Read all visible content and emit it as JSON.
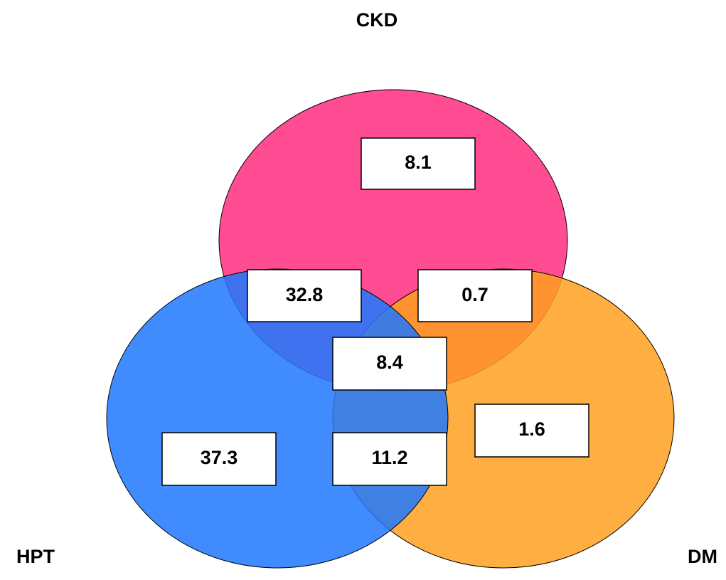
{
  "sets": [
    {
      "label": "CKD"
    },
    {
      "label": "HPT"
    },
    {
      "label": "DM"
    }
  ],
  "regions": [
    {
      "value": 8.1
    },
    {
      "value": 32.8
    },
    {
      "value": 0.7
    },
    {
      "value": 8.4
    },
    {
      "value": 1.6
    },
    {
      "value": 37.3
    },
    {
      "value": 11.2
    }
  ]
}
